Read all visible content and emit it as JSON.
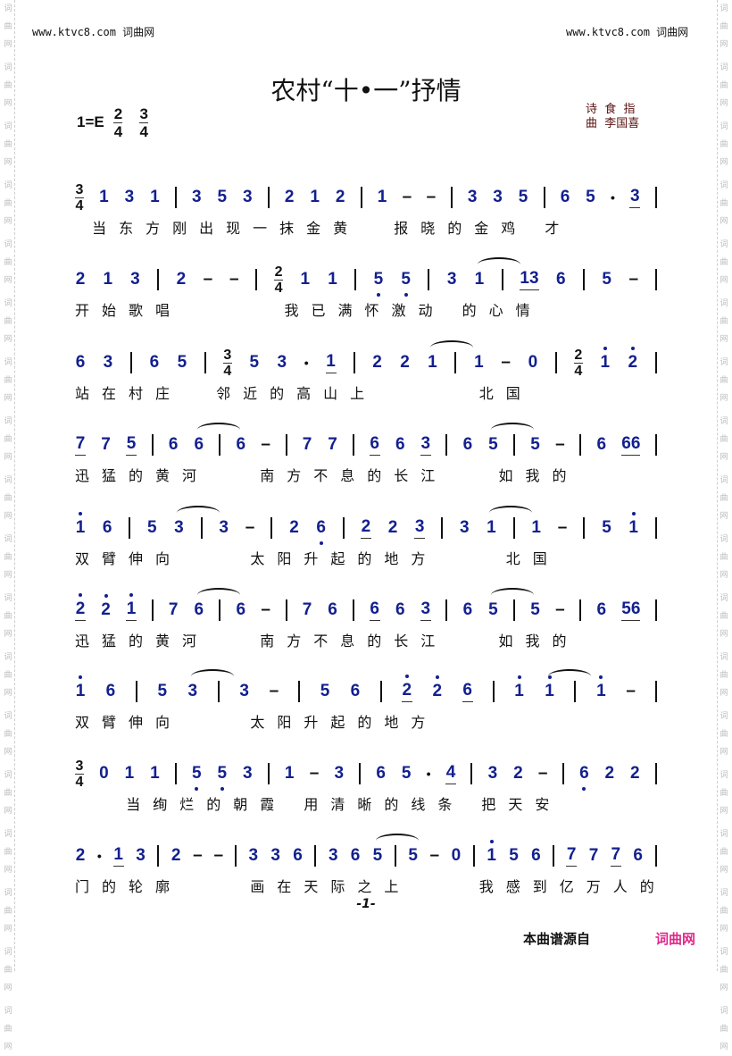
{
  "watermark": {
    "chars": [
      "词",
      "曲",
      "网"
    ]
  },
  "header": {
    "site_left": "www.ktvc8.com 词曲网",
    "site_right": "www.ktvc8.com 词曲网"
  },
  "title": "农村“十•一”抒情",
  "key": {
    "label": "1=E",
    "time1_top": "2",
    "time1_bottom": "4",
    "time2_top": "3",
    "time2_bottom": "4"
  },
  "credits": {
    "lyricist": "诗  食  指",
    "composer": "曲  李国喜"
  },
  "colors": {
    "note": "#13208f",
    "brand": "#e0288a"
  },
  "rows": [
    {
      "notes": [
        "[3/4]",
        "1",
        "3",
        "1",
        "|",
        "3",
        "5",
        "3",
        "|",
        "2",
        "1",
        "2",
        "|",
        "1",
        "-",
        "-",
        "|",
        "3",
        "3",
        "5",
        "|",
        "6",
        "5",
        "·",
        "_3",
        "|"
      ],
      "lyrics": " 当东方刚出现一抹金黄  报晓的金鸡 才"
    },
    {
      "notes": [
        "2",
        "1",
        "3",
        "|",
        "2",
        "-",
        "-",
        "|",
        "[2/4]",
        "1",
        "1",
        "|",
        "5,",
        "5,",
        "|",
        "3",
        "1~",
        "|",
        "_13",
        "6",
        "|",
        "5",
        "-",
        "|"
      ],
      "lyrics": "开始歌唱      我已满怀激动 的心情"
    },
    {
      "notes": [
        "6",
        "3",
        "|",
        "6",
        "5",
        "|",
        "[3/4]",
        "5",
        "3",
        "·",
        "_1",
        "|",
        "2",
        "2",
        "1~",
        "|",
        "1",
        "-",
        "0",
        "|",
        "[2/4]",
        "1'",
        "2'",
        "|"
      ],
      "lyrics": "站在村庄  邻近的高山上      北国"
    },
    {
      "notes": [
        "_7",
        "7",
        "_5",
        "|",
        "6",
        "6~",
        "|",
        "6",
        "-",
        "|",
        "7",
        "7",
        "|",
        "_6",
        "6",
        "_3",
        "|",
        "6",
        "5~",
        "|",
        "5",
        "-",
        "|",
        "6",
        "_66",
        "|"
      ],
      "lyrics": "迅猛的黄河   南方不息的长江   如我的"
    },
    {
      "notes": [
        "1'",
        "6",
        "|",
        "5",
        "3~",
        "|",
        "3",
        "-",
        "|",
        "2",
        "6,",
        "|",
        "_2",
        "2",
        "_3",
        "|",
        "3",
        "1~",
        "|",
        "1",
        "-",
        "|",
        "5",
        "1'",
        "|"
      ],
      "lyrics": "双臂伸向    太阳升起的地方    北国"
    },
    {
      "notes": [
        "_2'",
        "2'",
        "_1'",
        "|",
        "7",
        "6~",
        "|",
        "6",
        "-",
        "|",
        "7",
        "6",
        "|",
        "_6",
        "6",
        "_3",
        "|",
        "6",
        "5~",
        "|",
        "5",
        "-",
        "|",
        "6",
        "_56",
        "|"
      ],
      "lyrics": "迅猛的黄河   南方不息的长江   如我的"
    },
    {
      "notes": [
        "1'",
        "6",
        "|",
        "5",
        "3~",
        "|",
        "3",
        "-",
        "|",
        "5",
        "6",
        "|",
        "_2'",
        "2'",
        "_6",
        "|",
        "1'",
        "1'~",
        "|",
        "1'",
        "-",
        "|"
      ],
      "lyrics": "双臂伸向    太阳升起的地方"
    },
    {
      "notes": [
        "[3/4]",
        "0",
        "1",
        "1",
        "|",
        "5,",
        "5,",
        "3",
        "|",
        "1",
        "-",
        "3",
        "|",
        "6",
        "5",
        "·",
        "_4",
        "|",
        "3",
        "2",
        "-",
        "|",
        "6,",
        "2",
        "2",
        "|"
      ],
      "lyrics": "   当绚烂的朝霞 用清晰的线条 把天安"
    },
    {
      "notes": [
        "2",
        "·",
        "_1",
        "3",
        "|",
        "2",
        "-",
        "-",
        "|",
        "3",
        "3",
        "6",
        "|",
        "3",
        "6",
        "5~",
        "|",
        "5",
        "-",
        "0",
        "|",
        "1'",
        "5",
        "6",
        "|",
        "_7",
        "7",
        "_7",
        "6",
        "|"
      ],
      "lyrics": "门的轮廓    画在天际之上    我感到亿万人的"
    }
  ],
  "footer": {
    "page": "-1-",
    "source_label": "本曲谱源自",
    "source_site": "词曲网"
  }
}
